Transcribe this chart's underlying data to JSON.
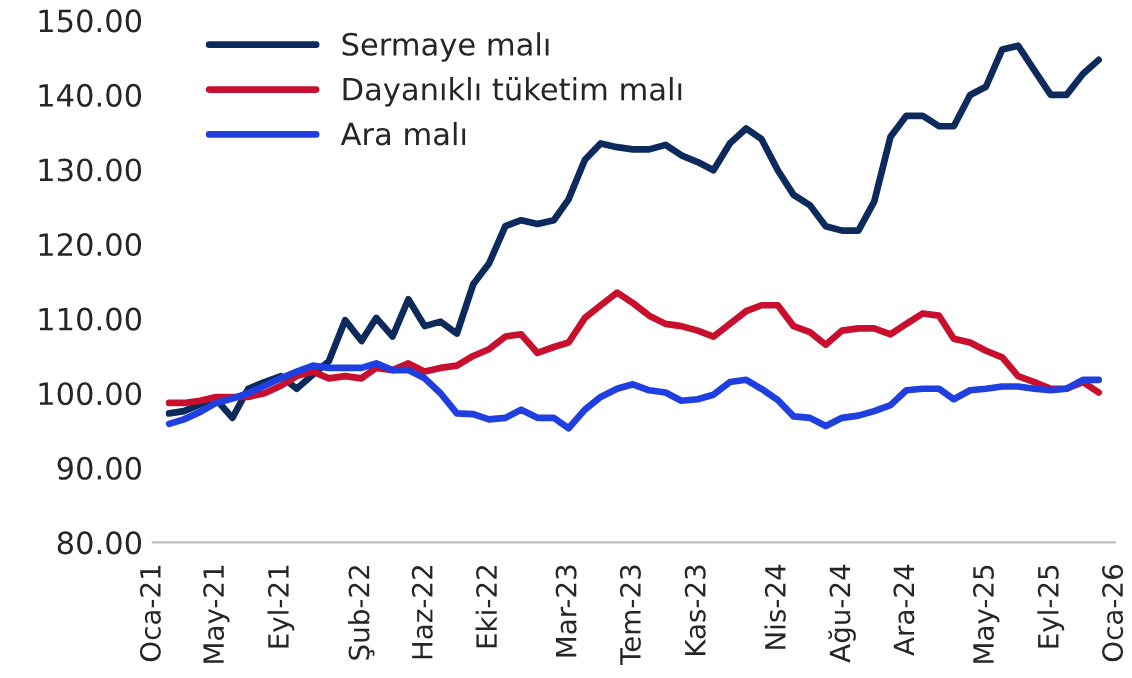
{
  "chart_data": {
    "type": "line",
    "x": [
      "2021-02",
      "2021-03",
      "2021-04",
      "2021-05",
      "2021-06",
      "2021-07",
      "2021-08",
      "2021-09",
      "2021-10",
      "2021-11",
      "2021-12",
      "2022-01",
      "2022-02",
      "2022-03",
      "2022-04",
      "2022-05",
      "2022-06",
      "2022-07",
      "2022-08",
      "2022-09",
      "2022-10",
      "2022-11",
      "2022-12",
      "2023-01",
      "2023-02",
      "2023-03",
      "2023-04",
      "2023-05",
      "2023-06",
      "2023-07",
      "2023-08",
      "2023-09",
      "2023-10",
      "2023-11",
      "2023-12",
      "2024-01",
      "2024-02",
      "2024-03",
      "2024-04",
      "2024-05",
      "2024-06",
      "2024-07",
      "2024-08",
      "2024-09",
      "2024-10",
      "2024-11",
      "2024-12",
      "2025-01",
      "2025-02",
      "2025-03",
      "2025-04",
      "2025-05",
      "2025-06",
      "2025-07",
      "2025-08",
      "2025-09",
      "2025-10",
      "2025-11",
      "2025-12"
    ],
    "series": [
      {
        "name": "Sermaye malı",
        "color": "#0d2a5c",
        "values": [
          97.3,
          97.6,
          98.5,
          99.2,
          96.7,
          100.6,
          101.5,
          102.3,
          100.6,
          102.5,
          104.3,
          109.8,
          107,
          110.1,
          107.6,
          112.6,
          109,
          109.6,
          108,
          114.6,
          117.4,
          122.4,
          123.2,
          122.7,
          123.2,
          126,
          131.3,
          133.5,
          133,
          132.7,
          132.7,
          133.3,
          131.9,
          131,
          129.9,
          133.5,
          135.5,
          134.1,
          129.9,
          126.6,
          125.2,
          122.4,
          121.8,
          121.8,
          125.7,
          134.4,
          137.2,
          137.2,
          135.8,
          135.8,
          140,
          141.1,
          146.1,
          146.6,
          143.3,
          140,
          140,
          142.8,
          144.7
        ]
      },
      {
        "name": "Dayanıklı tüketim malı",
        "color": "#c8102e",
        "values": [
          98.7,
          98.7,
          99,
          99.5,
          99.5,
          99.5,
          100,
          101,
          102.3,
          102.9,
          102,
          102.3,
          102,
          103.4,
          103.1,
          104,
          102.9,
          103.4,
          103.7,
          105,
          105.9,
          107.6,
          107.9,
          105.4,
          106.2,
          106.8,
          110.1,
          111.8,
          113.5,
          112.1,
          110.4,
          109.3,
          109,
          108.4,
          107.6,
          109.3,
          111,
          111.8,
          111.8,
          109,
          108.2,
          106.5,
          108.4,
          108.7,
          108.7,
          107.9,
          109.3,
          110.7,
          110.4,
          107.3,
          106.8,
          105.7,
          104.8,
          102.3,
          101.5,
          100.6,
          100.6,
          101.5,
          100.1
        ]
      },
      {
        "name": "Ara malı",
        "color": "#1f3fe0",
        "values": [
          95.9,
          96.5,
          97.5,
          98.7,
          99.3,
          100,
          101,
          102,
          102.9,
          103.7,
          103.4,
          103.4,
          103.4,
          104,
          103.1,
          103.1,
          102,
          100,
          97.3,
          97.2,
          96.5,
          96.7,
          97.8,
          96.7,
          96.7,
          95.3,
          97.8,
          99.5,
          100.6,
          101.2,
          100.4,
          100.1,
          99,
          99.2,
          99.8,
          101.5,
          101.8,
          100.6,
          99.1,
          96.9,
          96.7,
          95.6,
          96.7,
          97,
          97.6,
          98.4,
          100.4,
          100.6,
          100.6,
          99.2,
          100.4,
          100.6,
          100.9,
          100.9,
          100.6,
          100.4,
          100.6,
          101.8,
          101.8
        ]
      }
    ],
    "xlim": [
      "2021-01",
      "2026-01"
    ],
    "xticks": [
      {
        "value": "2021-01",
        "label": "Oca-21"
      },
      {
        "value": "2021-05",
        "label": "May-21"
      },
      {
        "value": "2021-09",
        "label": "Eyl-21"
      },
      {
        "value": "2022-02",
        "label": "Şub-22"
      },
      {
        "value": "2022-06",
        "label": "Haz-22"
      },
      {
        "value": "2022-10",
        "label": "Eki-22"
      },
      {
        "value": "2023-03",
        "label": "Mar-23"
      },
      {
        "value": "2023-07",
        "label": "Tem-23"
      },
      {
        "value": "2023-11",
        "label": "Kas-23"
      },
      {
        "value": "2024-04",
        "label": "Nis-24"
      },
      {
        "value": "2024-08",
        "label": "Ağu-24"
      },
      {
        "value": "2024-12",
        "label": "Ara-24"
      },
      {
        "value": "2025-05",
        "label": "May-25"
      },
      {
        "value": "2025-09",
        "label": "Eyl-25"
      },
      {
        "value": "2026-01",
        "label": "Oca-26"
      }
    ],
    "ylim": [
      80,
      150
    ],
    "yticks": [
      {
        "value": 80,
        "label": "80.00"
      },
      {
        "value": 90,
        "label": "90.00"
      },
      {
        "value": 100,
        "label": "100.00"
      },
      {
        "value": 110,
        "label": "110.00"
      },
      {
        "value": 120,
        "label": "120.00"
      },
      {
        "value": 130,
        "label": "130.00"
      },
      {
        "value": 140,
        "label": "140.00"
      },
      {
        "value": 150,
        "label": "150.00"
      }
    ],
    "legend": "top left",
    "grid": false,
    "marker": "none",
    "line_style": "solid"
  }
}
